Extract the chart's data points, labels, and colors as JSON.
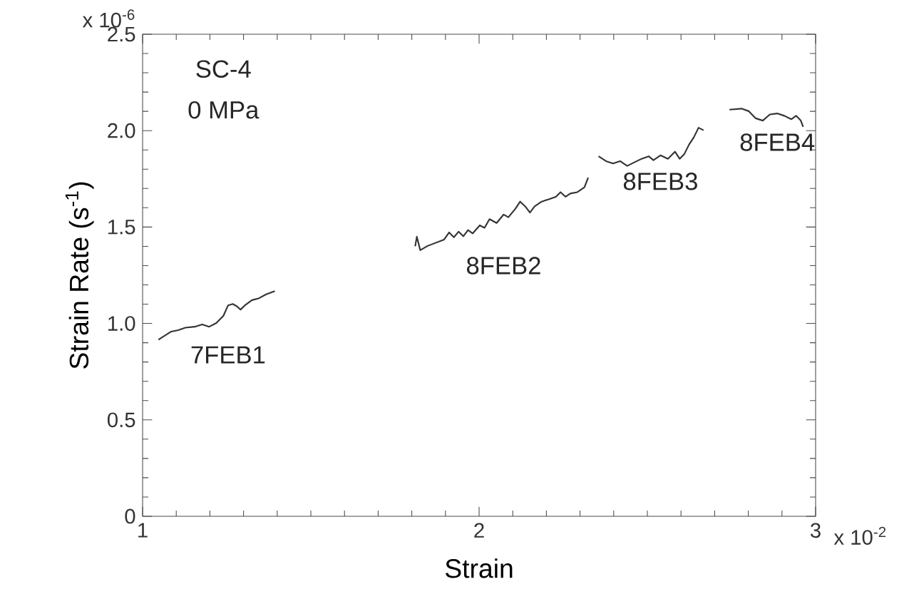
{
  "chart_data": {
    "type": "line",
    "xlabel": "Strain",
    "ylabel": "Strain Rate (s$^{-1}$)",
    "annotations": [
      "SC-4",
      "0 MPa",
      "x 10$^{-6}$",
      "x 10$^{-2}$"
    ],
    "xlim": [
      1,
      3
    ],
    "ylim": [
      0,
      2.5
    ],
    "xticks": [
      1,
      2,
      3
    ],
    "yticks": [
      0,
      0.5,
      {
        "value": 1,
        "label": "1.0"
      },
      1.5,
      {
        "value": 2,
        "label": "2.0"
      },
      2.5
    ],
    "grid": false,
    "legend": false,
    "marker": "none",
    "line_style": "solid",
    "series": [
      {
        "name": "7FEB1",
        "color": "#333333",
        "x": [
          1.047,
          1.085,
          1.106,
          1.127,
          1.155,
          1.177,
          1.198,
          1.219,
          1.24,
          1.254,
          1.268,
          1.28,
          1.291,
          1.304,
          1.325,
          1.346,
          1.367,
          1.393
        ],
        "values": [
          0.916,
          0.958,
          0.965,
          0.978,
          0.983,
          0.995,
          0.983,
          1.002,
          1.039,
          1.094,
          1.101,
          1.089,
          1.072,
          1.094,
          1.121,
          1.131,
          1.151,
          1.168
        ]
      },
      {
        "name": "8FEB2",
        "color": "#333333",
        "x": [
          1.81,
          1.815,
          1.825,
          1.835,
          1.847,
          1.896,
          1.911,
          1.925,
          1.939,
          1.953,
          1.967,
          1.981,
          2.002,
          2.016,
          2.031,
          2.052,
          2.073,
          2.087,
          2.108,
          2.122,
          2.137,
          2.151,
          2.165,
          2.186,
          2.207,
          2.228,
          2.242,
          2.257,
          2.271,
          2.292,
          2.313,
          2.324
        ],
        "values": [
          1.4,
          1.45,
          1.38,
          1.39,
          1.402,
          1.435,
          1.472,
          1.447,
          1.476,
          1.452,
          1.484,
          1.467,
          1.509,
          1.496,
          1.541,
          1.521,
          1.565,
          1.551,
          1.595,
          1.632,
          1.607,
          1.575,
          1.607,
          1.632,
          1.644,
          1.657,
          1.681,
          1.657,
          1.674,
          1.681,
          1.706,
          1.756
        ]
      },
      {
        "name": "8FEB3",
        "color": "#333333",
        "x": [
          2.355,
          2.377,
          2.398,
          2.419,
          2.44,
          2.483,
          2.504,
          2.518,
          2.539,
          2.561,
          2.582,
          2.596,
          2.61,
          2.624,
          2.638,
          2.652,
          2.667
        ],
        "values": [
          1.867,
          1.842,
          1.83,
          1.842,
          1.817,
          1.854,
          1.867,
          1.847,
          1.872,
          1.854,
          1.891,
          1.854,
          1.879,
          1.928,
          1.965,
          2.015,
          2.002
        ]
      },
      {
        "name": "8FEB4",
        "color": "#333333",
        "x": [
          2.744,
          2.78,
          2.801,
          2.822,
          2.843,
          2.864,
          2.886,
          2.907,
          2.928,
          2.942,
          2.956,
          2.963
        ],
        "values": [
          2.109,
          2.114,
          2.101,
          2.064,
          2.052,
          2.084,
          2.089,
          2.077,
          2.059,
          2.077,
          2.052,
          2.02
        ]
      }
    ]
  }
}
